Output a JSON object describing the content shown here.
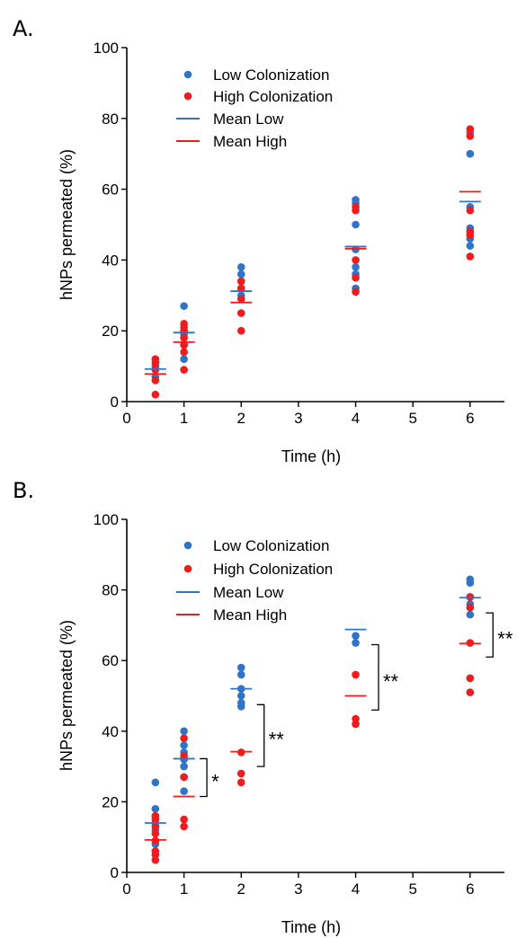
{
  "colors": {
    "low": "#2f74c9",
    "high": "#ee1c1c",
    "axis": "#000000"
  },
  "chart_data": [
    {
      "panel_label": "A.",
      "type": "scatter",
      "xlabel": "Time (h)",
      "ylabel": "hNPs permeated (%)",
      "xlim": [
        0,
        6.6
      ],
      "ylim": [
        0,
        100
      ],
      "xticks": [
        0,
        1,
        2,
        3,
        4,
        5,
        6
      ],
      "yticks": [
        0,
        20,
        40,
        60,
        80,
        100
      ],
      "legend": [
        "Low Colonization",
        "High Colonization",
        "Mean Low",
        "Mean High"
      ],
      "series": [
        {
          "name": "Low Colonization",
          "points": [
            [
              0.5,
              7
            ],
            [
              0.5,
              9
            ],
            [
              0.5,
              10
            ],
            [
              1,
              12
            ],
            [
              1,
              16
            ],
            [
              1,
              19
            ],
            [
              1,
              20
            ],
            [
              1,
              27
            ],
            [
              2,
              25
            ],
            [
              2,
              30
            ],
            [
              2,
              32
            ],
            [
              2,
              34
            ],
            [
              2,
              36
            ],
            [
              2,
              38
            ],
            [
              4,
              32
            ],
            [
              4,
              36
            ],
            [
              4,
              38
            ],
            [
              4,
              43
            ],
            [
              4,
              50
            ],
            [
              4,
              56
            ],
            [
              4,
              57
            ],
            [
              6,
              44
            ],
            [
              6,
              46
            ],
            [
              6,
              49
            ],
            [
              6,
              55
            ],
            [
              6,
              70
            ],
            [
              6,
              76
            ]
          ]
        },
        {
          "name": "High Colonization",
          "points": [
            [
              0.5,
              2
            ],
            [
              0.5,
              6
            ],
            [
              0.5,
              9
            ],
            [
              0.5,
              11
            ],
            [
              0.5,
              12
            ],
            [
              1,
              9
            ],
            [
              1,
              14
            ],
            [
              1,
              16
            ],
            [
              1,
              18
            ],
            [
              1,
              20
            ],
            [
              1,
              21
            ],
            [
              1,
              22
            ],
            [
              2,
              20
            ],
            [
              2,
              25
            ],
            [
              2,
              29
            ],
            [
              2,
              32
            ],
            [
              2,
              34
            ],
            [
              4,
              31
            ],
            [
              4,
              35
            ],
            [
              4,
              40
            ],
            [
              4,
              54
            ],
            [
              4,
              55
            ],
            [
              6,
              41
            ],
            [
              6,
              47
            ],
            [
              6,
              48
            ],
            [
              6,
              54
            ],
            [
              6,
              75
            ],
            [
              6,
              77
            ]
          ]
        }
      ],
      "means": {
        "Mean Low": {
          "x": [
            0.5,
            1,
            2,
            4,
            6
          ],
          "y": [
            9.2,
            19.5,
            31.2,
            43.8,
            56.5
          ]
        },
        "Mean High": {
          "x": [
            0.5,
            1,
            2,
            4,
            6
          ],
          "y": [
            7.8,
            16.8,
            28,
            43.2,
            59.3
          ]
        }
      },
      "significance": []
    },
    {
      "panel_label": "B.",
      "type": "scatter",
      "xlabel": "Time (h)",
      "ylabel": "hNPs permeated (%)",
      "xlim": [
        0,
        6.6
      ],
      "ylim": [
        0,
        100
      ],
      "xticks": [
        0,
        1,
        2,
        3,
        4,
        5,
        6
      ],
      "yticks": [
        0,
        20,
        40,
        60,
        80,
        100
      ],
      "legend": [
        "Low Colonization",
        "High Colonization",
        "Mean Low",
        "Mean High"
      ],
      "series": [
        {
          "name": "Low Colonization",
          "points": [
            [
              0.5,
              8
            ],
            [
              0.5,
              12
            ],
            [
              0.5,
              14
            ],
            [
              0.5,
              16
            ],
            [
              0.5,
              18
            ],
            [
              0.5,
              25.5
            ],
            [
              1,
              23
            ],
            [
              1,
              27
            ],
            [
              1,
              30
            ],
            [
              1,
              32
            ],
            [
              1,
              34
            ],
            [
              1,
              36
            ],
            [
              1,
              40
            ],
            [
              2,
              47
            ],
            [
              2,
              48
            ],
            [
              2,
              50
            ],
            [
              2,
              52
            ],
            [
              2,
              56
            ],
            [
              2,
              58
            ],
            [
              4,
              65
            ],
            [
              4,
              67
            ],
            [
              6,
              73
            ],
            [
              6,
              76
            ],
            [
              6,
              78
            ],
            [
              6,
              82
            ],
            [
              6,
              83
            ]
          ]
        },
        {
          "name": "High Colonization",
          "points": [
            [
              0.5,
              3.5
            ],
            [
              0.5,
              5
            ],
            [
              0.5,
              6
            ],
            [
              0.5,
              9
            ],
            [
              0.5,
              11
            ],
            [
              0.5,
              13
            ],
            [
              0.5,
              15
            ],
            [
              0.5,
              16
            ],
            [
              1,
              13
            ],
            [
              1,
              15
            ],
            [
              1,
              27
            ],
            [
              1,
              33
            ],
            [
              1,
              38
            ],
            [
              2,
              25.5
            ],
            [
              2,
              28
            ],
            [
              2,
              34
            ],
            [
              4,
              42
            ],
            [
              4,
              43.5
            ],
            [
              4,
              56
            ],
            [
              6,
              51
            ],
            [
              6,
              55
            ],
            [
              6,
              65
            ],
            [
              6,
              75
            ],
            [
              6,
              78
            ]
          ]
        }
      ],
      "means": {
        "Mean Low": {
          "x": [
            0.5,
            1,
            2,
            4,
            6
          ],
          "y": [
            14,
            32.2,
            52,
            68.8,
            77.8
          ]
        },
        "Mean High": {
          "x": [
            0.5,
            1,
            2,
            4,
            6
          ],
          "y": [
            9.2,
            21.5,
            34.2,
            50,
            64.8
          ]
        }
      },
      "significance": [
        {
          "x": 1.4,
          "y_low": 21.5,
          "y_high": 32.2,
          "label": "*"
        },
        {
          "x": 2.4,
          "y_low": 30,
          "y_high": 47.5,
          "label": "**"
        },
        {
          "x": 4.4,
          "y_low": 46,
          "y_high": 64.5,
          "label": "**"
        },
        {
          "x": 6.4,
          "y_low": 61,
          "y_high": 73.5,
          "label": "**"
        }
      ]
    }
  ]
}
